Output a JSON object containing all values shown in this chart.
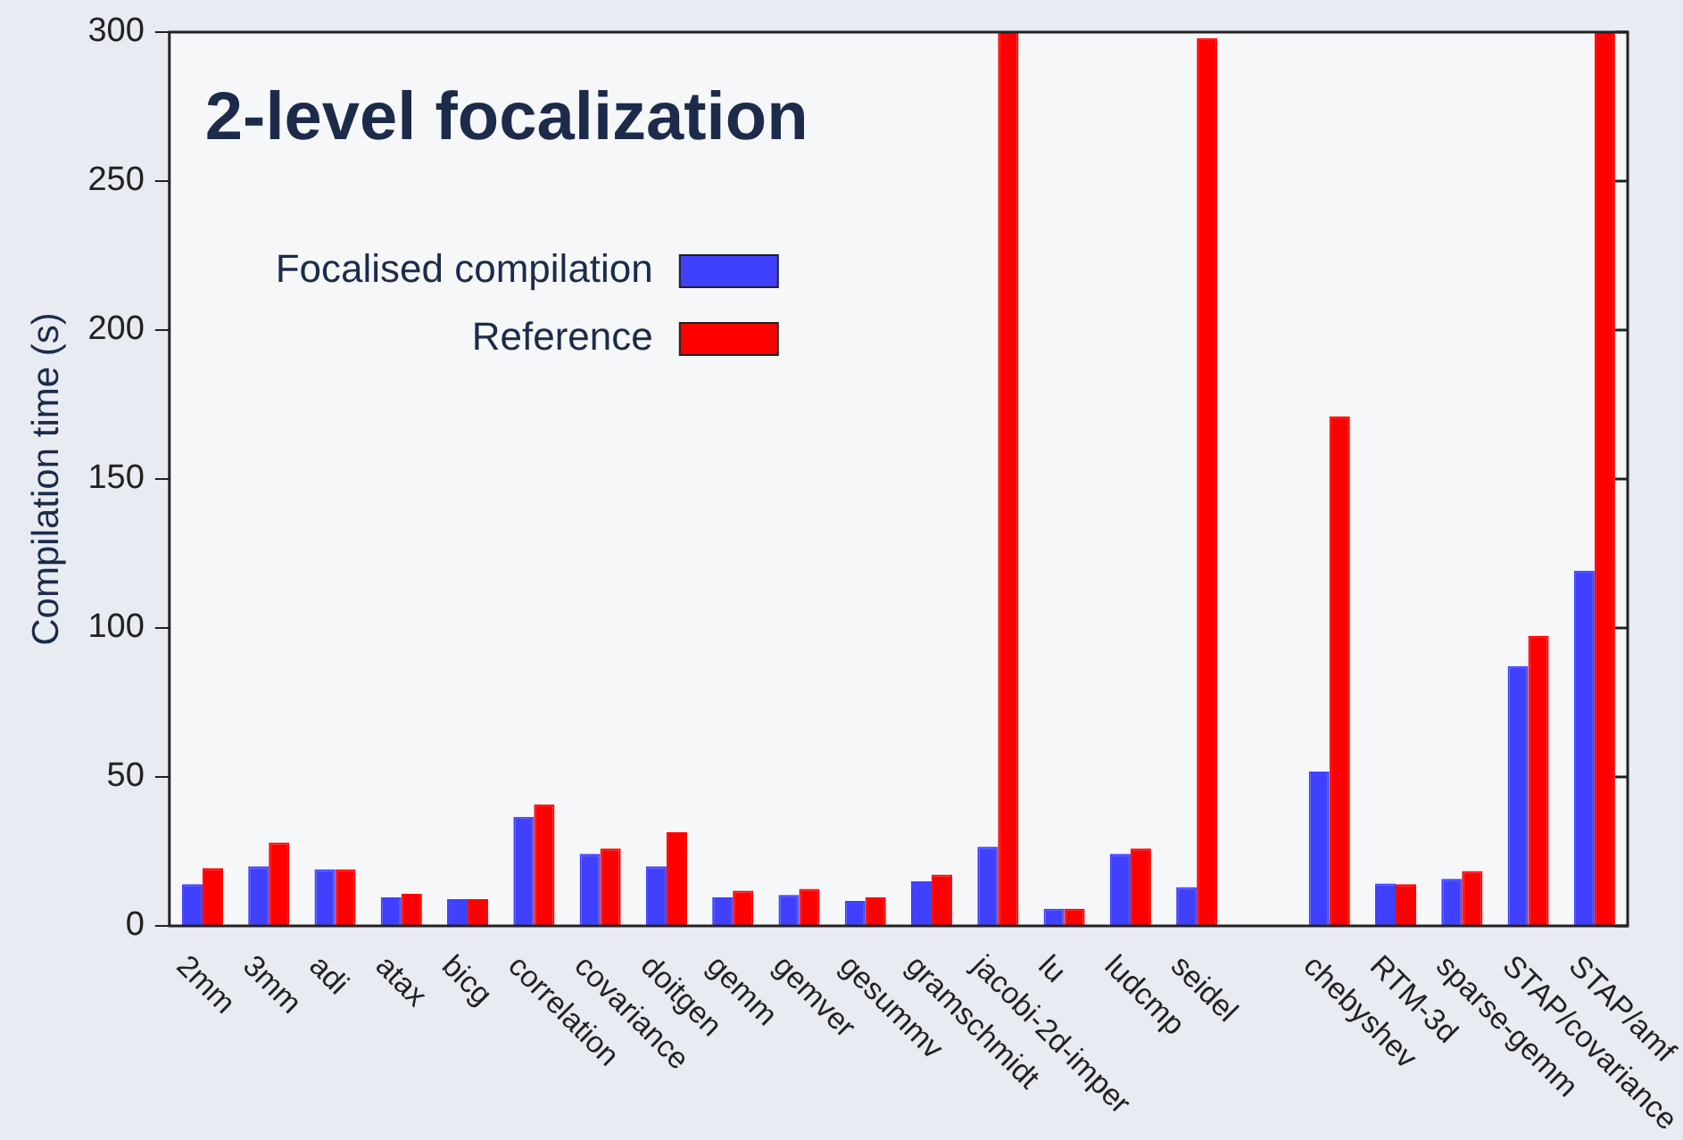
{
  "chart_data": {
    "type": "bar",
    "title": "2-level focalization",
    "ylabel": "Compilation time (s)",
    "categories": [
      "2mm",
      "3mm",
      "adi",
      "atax",
      "bicg",
      "correlation",
      "covariance",
      "doitgen",
      "gemm",
      "gemver",
      "gesummv",
      "gramschmidt",
      "jacobi-2d-imper",
      "lu",
      "ludcmp",
      "seidel",
      null,
      "chebyshev",
      "RTM-3d",
      "sparse-gemm",
      "STAP/covariance",
      "STAP/amf"
    ],
    "series": [
      {
        "name": "Focalised compilation",
        "color": "#4040ff",
        "values": [
          14,
          20,
          19,
          9.6,
          9,
          36.6,
          24.2,
          20,
          9.6,
          10.4,
          8.4,
          15,
          26.6,
          5.8,
          24.2,
          13,
          null,
          51.8,
          14.2,
          15.8,
          87.2,
          119.2
        ]
      },
      {
        "name": "Reference",
        "color": "#ff0000",
        "values": [
          19.4,
          28,
          19,
          10.8,
          9,
          40.8,
          26,
          31.4,
          11.8,
          12.4,
          9.6,
          17.2,
          300,
          5.8,
          26,
          298,
          null,
          171,
          14,
          18.4,
          97.4,
          300
        ]
      }
    ],
    "ylim": [
      0,
      300
    ],
    "yticks": [
      0,
      50,
      100,
      150,
      200,
      250,
      300
    ],
    "legend": "top left"
  }
}
